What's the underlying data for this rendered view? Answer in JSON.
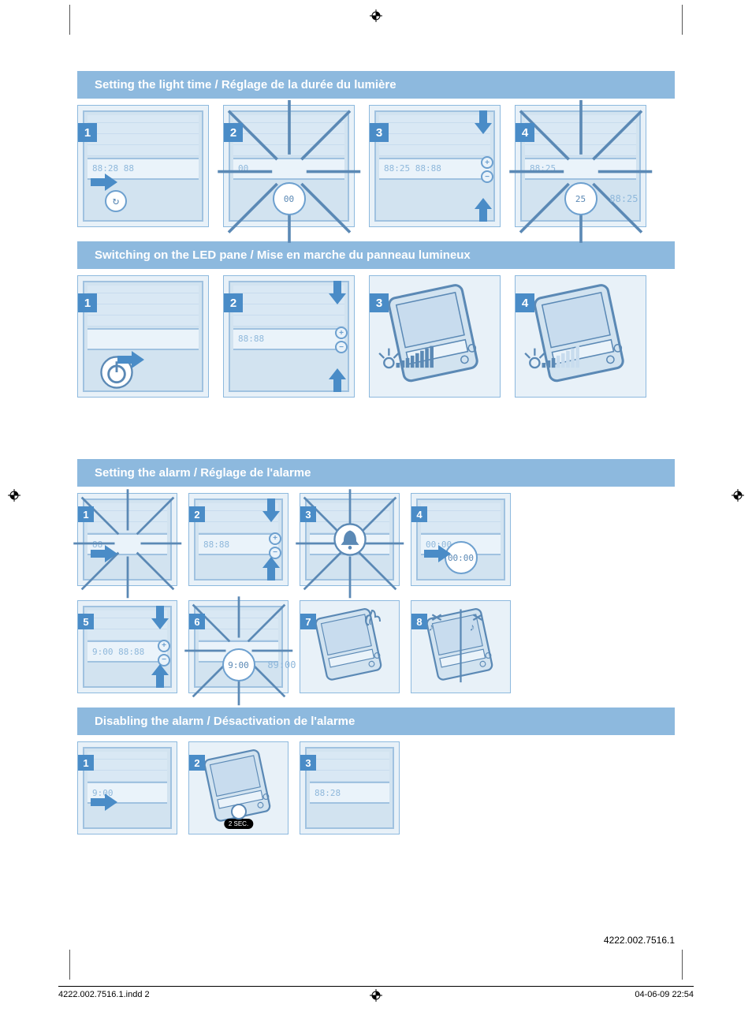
{
  "colors": {
    "header_bg": "#8db9de",
    "header_text": "#ffffff",
    "step_bg": "#e8f1f8",
    "step_border": "#8db9de",
    "num_bg": "#4a8cc7",
    "num_text": "#ffffff",
    "arrow": "#4a8cc7",
    "line_art": "#5b89b5",
    "lcd_text": "#8fb8db"
  },
  "sections": [
    {
      "title": "Setting the light time / Réglage de la durée du lumière",
      "row_class": "wide",
      "steps": [
        {
          "num": "1",
          "lcd": "88:28 88",
          "arrow": "right",
          "icon": "timer"
        },
        {
          "num": "2",
          "lcd": "00",
          "flash": true,
          "circ_text": "00"
        },
        {
          "num": "3",
          "lcd": "88:25  88:88",
          "pm": true,
          "arrow": "up-down"
        },
        {
          "num": "4",
          "lcd": "88:25",
          "flash": true,
          "circ_text": "25",
          "side_digits": "88:25"
        }
      ]
    },
    {
      "title": "Switching on the LED pane / Mise en marche du panneau lumineux",
      "row_class": "wide",
      "steps": [
        {
          "num": "1",
          "icon": "power",
          "arrow": "right-low",
          "tilt": false
        },
        {
          "num": "2",
          "lcd": "88:88",
          "pm": true,
          "arrow": "up-down",
          "demo": true
        },
        {
          "num": "3",
          "tilt": true,
          "bars": "high"
        },
        {
          "num": "4",
          "tilt": true,
          "bars": "low"
        }
      ]
    },
    {
      "title": "Setting the alarm / Réglage de l'alarme",
      "row_class": "narrow",
      "steps": [
        {
          "num": "1",
          "flash": true,
          "arrow": "right",
          "lcd": "88"
        },
        {
          "num": "2",
          "lcd": "88:88",
          "pm": true,
          "arrow": "up-down"
        },
        {
          "num": "3",
          "flash": true,
          "icon": "bell"
        },
        {
          "num": "4",
          "lcd": "00:00",
          "arrow": "right",
          "circ_text": "00:00"
        },
        {
          "num": "5",
          "lcd": "9:00  88:88",
          "pm": true,
          "arrow": "up-down"
        },
        {
          "num": "6",
          "flash": true,
          "circ_text": "9:00",
          "side_digits": "89:00"
        },
        {
          "num": "7",
          "tilt": true,
          "icon": "sound"
        },
        {
          "num": "8",
          "tilt": true,
          "icon": "mute-hand"
        }
      ]
    },
    {
      "title": "Disabling the alarm / Désactivation de l'alarme",
      "row_class": "narrow",
      "steps": [
        {
          "num": "1",
          "lcd": "9:00",
          "arrow": "right"
        },
        {
          "num": "2",
          "tilt": true,
          "hold": "2 SEC."
        },
        {
          "num": "3",
          "lcd": "88:28"
        }
      ]
    }
  ],
  "doc_id": "4222.002.7516.1",
  "footer_left": "4222.002.7516.1.indd   2",
  "footer_right": "04-06-09   22:54"
}
